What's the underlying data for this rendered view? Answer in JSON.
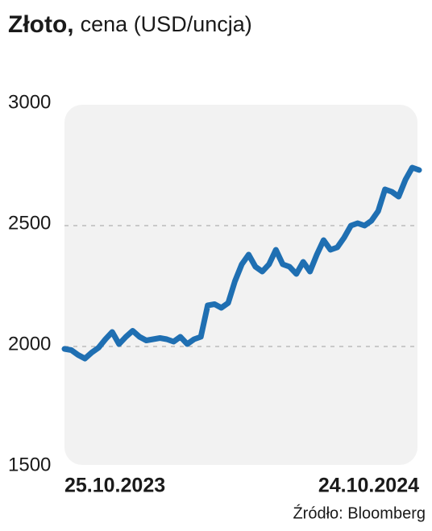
{
  "chart_data": {
    "type": "line",
    "title": "Złoto,",
    "subtitle": "cena (USD/uncja)",
    "source": "Źródło: Bloomberg",
    "categories": [
      "25.10.2023",
      null,
      null,
      null,
      null,
      null,
      null,
      null,
      null,
      null,
      null,
      null,
      null,
      null,
      null,
      null,
      null,
      null,
      null,
      null,
      null,
      null,
      null,
      null,
      null,
      null,
      null,
      null,
      null,
      null,
      null,
      null,
      null,
      null,
      null,
      null,
      null,
      null,
      null,
      null,
      null,
      null,
      null,
      null,
      null,
      null,
      null,
      null,
      null,
      null,
      null,
      null,
      "24.10.2024"
    ],
    "series": [
      {
        "color": "#1f6fb2",
        "values": [
          1990,
          1985,
          1965,
          1950,
          1975,
          1995,
          2030,
          2060,
          2010,
          2040,
          2065,
          2040,
          2025,
          2030,
          2035,
          2030,
          2020,
          2040,
          2010,
          2030,
          2040,
          2170,
          2175,
          2160,
          2180,
          2270,
          2340,
          2380,
          2330,
          2310,
          2340,
          2400,
          2340,
          2330,
          2300,
          2350,
          2310,
          2380,
          2440,
          2400,
          2410,
          2450,
          2500,
          2510,
          2500,
          2520,
          2560,
          2650,
          2640,
          2620,
          2690,
          2740,
          2730
        ]
      }
    ],
    "ylim": [
      1500,
      3000
    ],
    "yticks": [
      1500,
      2000,
      2500,
      3000
    ],
    "grid": true
  }
}
